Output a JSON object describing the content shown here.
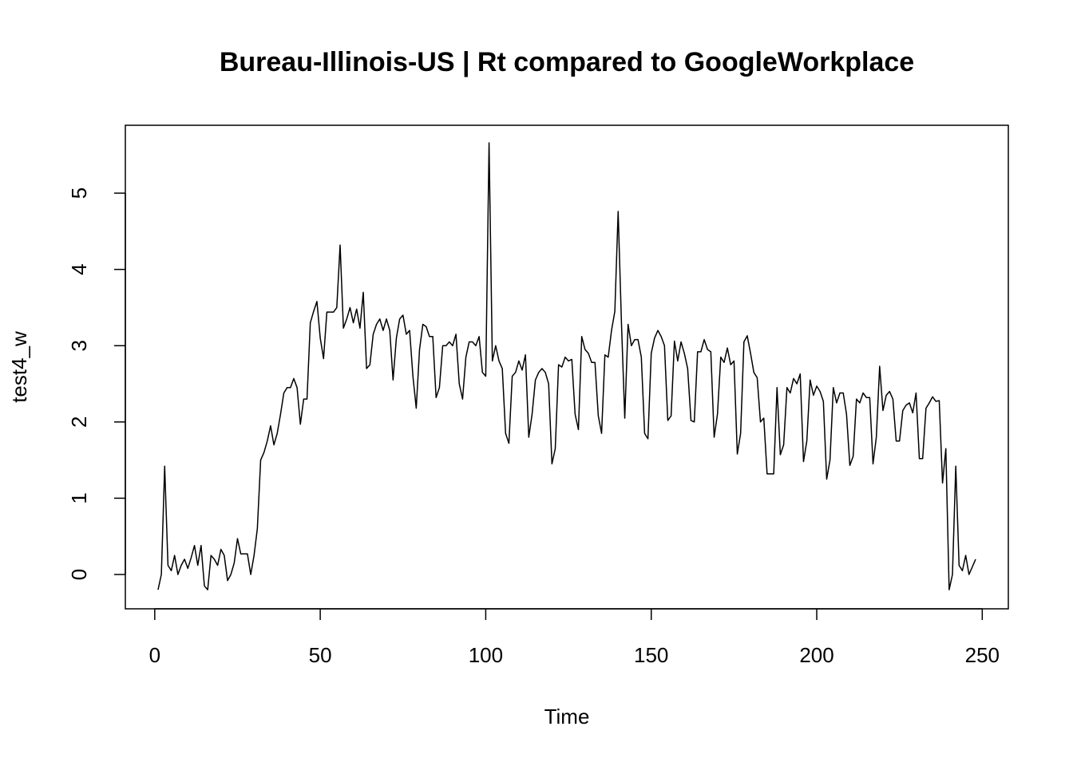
{
  "chart_data": {
    "type": "line",
    "title": "Bureau-Illinois-US | Rt compared to GoogleWorkplace",
    "x_label": "Time",
    "y_label": "test4_w",
    "color": "#000000",
    "xlim": [
      -8.88,
      257.88
    ],
    "ylim": [
      -0.45,
      5.89
    ],
    "xticks": [
      0,
      50,
      100,
      150,
      200,
      250
    ],
    "yticks": [
      0,
      1,
      2,
      3,
      4,
      5
    ],
    "x": [
      1,
      2,
      3,
      4,
      5,
      6,
      7,
      8,
      9,
      10,
      11,
      12,
      13,
      14,
      15,
      16,
      17,
      18,
      19,
      20,
      21,
      22,
      23,
      24,
      25,
      26,
      27,
      28,
      29,
      30,
      31,
      32,
      33,
      34,
      35,
      36,
      37,
      38,
      39,
      40,
      41,
      42,
      43,
      44,
      45,
      46,
      47,
      48,
      49,
      50,
      51,
      52,
      53,
      54,
      55,
      56,
      57,
      58,
      59,
      60,
      61,
      62,
      63,
      64,
      65,
      66,
      67,
      68,
      69,
      70,
      71,
      72,
      73,
      74,
      75,
      76,
      77,
      78,
      79,
      80,
      81,
      82,
      83,
      84,
      85,
      86,
      87,
      88,
      89,
      90,
      91,
      92,
      93,
      94,
      95,
      96,
      97,
      98,
      99,
      100,
      101,
      102,
      103,
      104,
      105,
      106,
      107,
      108,
      109,
      110,
      111,
      112,
      113,
      114,
      115,
      116,
      117,
      118,
      119,
      120,
      121,
      122,
      123,
      124,
      125,
      126,
      127,
      128,
      129,
      130,
      131,
      132,
      133,
      134,
      135,
      136,
      137,
      138,
      139,
      140,
      141,
      142,
      143,
      144,
      145,
      146,
      147,
      148,
      149,
      150,
      151,
      152,
      153,
      154,
      155,
      156,
      157,
      158,
      159,
      160,
      161,
      162,
      163,
      164,
      165,
      166,
      167,
      168,
      169,
      170,
      171,
      172,
      173,
      174,
      175,
      176,
      177,
      178,
      179,
      180,
      181,
      182,
      183,
      184,
      185,
      186,
      187,
      188,
      189,
      190,
      191,
      192,
      193,
      194,
      195,
      196,
      197,
      198,
      199,
      200,
      201,
      202,
      203,
      204,
      205,
      206,
      207,
      208,
      209,
      210,
      211,
      212,
      213,
      214,
      215,
      216,
      217,
      218,
      219,
      220,
      221,
      222,
      223,
      224,
      225,
      226,
      227,
      228,
      229,
      230,
      231,
      232,
      233,
      234,
      235,
      236,
      237,
      238,
      239,
      240,
      241,
      242,
      243,
      244,
      245,
      246,
      247,
      248
    ],
    "values": [
      -0.2,
      0.0,
      1.42,
      0.12,
      0.05,
      0.25,
      0.0,
      0.12,
      0.2,
      0.08,
      0.22,
      0.38,
      0.12,
      0.38,
      -0.15,
      -0.2,
      0.25,
      0.2,
      0.12,
      0.33,
      0.25,
      -0.08,
      0.0,
      0.15,
      0.47,
      0.27,
      0.27,
      0.27,
      0.0,
      0.25,
      0.6,
      1.5,
      1.6,
      1.75,
      1.95,
      1.7,
      1.85,
      2.1,
      2.38,
      2.45,
      2.45,
      2.57,
      2.45,
      1.97,
      2.3,
      2.3,
      3.3,
      3.45,
      3.58,
      3.1,
      2.83,
      3.44,
      3.44,
      3.44,
      3.5,
      4.32,
      3.23,
      3.35,
      3.5,
      3.3,
      3.48,
      3.23,
      3.7,
      2.7,
      2.75,
      3.15,
      3.28,
      3.35,
      3.2,
      3.35,
      3.2,
      2.55,
      3.1,
      3.35,
      3.4,
      3.15,
      3.2,
      2.6,
      2.18,
      2.95,
      3.28,
      3.25,
      3.12,
      3.12,
      2.32,
      2.45,
      3.0,
      3.0,
      3.05,
      3.0,
      3.15,
      2.5,
      2.3,
      2.85,
      3.05,
      3.05,
      3.0,
      3.12,
      2.65,
      2.6,
      5.66,
      2.8,
      3.0,
      2.8,
      2.7,
      1.85,
      1.72,
      2.6,
      2.65,
      2.8,
      2.68,
      2.88,
      1.8,
      2.1,
      2.55,
      2.65,
      2.7,
      2.65,
      2.5,
      1.45,
      1.65,
      2.75,
      2.72,
      2.85,
      2.8,
      2.82,
      2.1,
      1.9,
      3.12,
      2.95,
      2.9,
      2.78,
      2.78,
      2.08,
      1.85,
      2.88,
      2.85,
      3.2,
      3.45,
      4.76,
      3.3,
      2.05,
      3.28,
      3.0,
      3.08,
      3.08,
      2.85,
      1.85,
      1.78,
      2.9,
      3.1,
      3.2,
      3.12,
      3.0,
      2.02,
      2.08,
      3.06,
      2.8,
      3.05,
      2.9,
      2.7,
      2.02,
      2.0,
      2.92,
      2.92,
      3.08,
      2.95,
      2.92,
      1.8,
      2.1,
      2.85,
      2.78,
      2.97,
      2.75,
      2.8,
      1.58,
      1.85,
      3.05,
      3.13,
      2.9,
      2.65,
      2.58,
      2.0,
      2.05,
      1.32,
      1.32,
      1.32,
      2.45,
      1.57,
      1.7,
      2.45,
      2.38,
      2.57,
      2.5,
      2.63,
      1.48,
      1.75,
      2.55,
      2.35,
      2.47,
      2.4,
      2.27,
      1.25,
      1.5,
      2.45,
      2.25,
      2.38,
      2.38,
      2.1,
      1.43,
      1.55,
      2.3,
      2.25,
      2.38,
      2.32,
      2.32,
      1.45,
      1.8,
      2.73,
      2.15,
      2.35,
      2.4,
      2.3,
      1.75,
      1.75,
      2.15,
      2.22,
      2.25,
      2.12,
      2.38,
      1.52,
      1.52,
      2.18,
      2.25,
      2.33,
      2.27,
      2.28,
      1.2,
      1.65,
      -0.2,
      0.0,
      1.42,
      0.12,
      0.05,
      0.25,
      0.0,
      0.1,
      0.2
    ]
  }
}
